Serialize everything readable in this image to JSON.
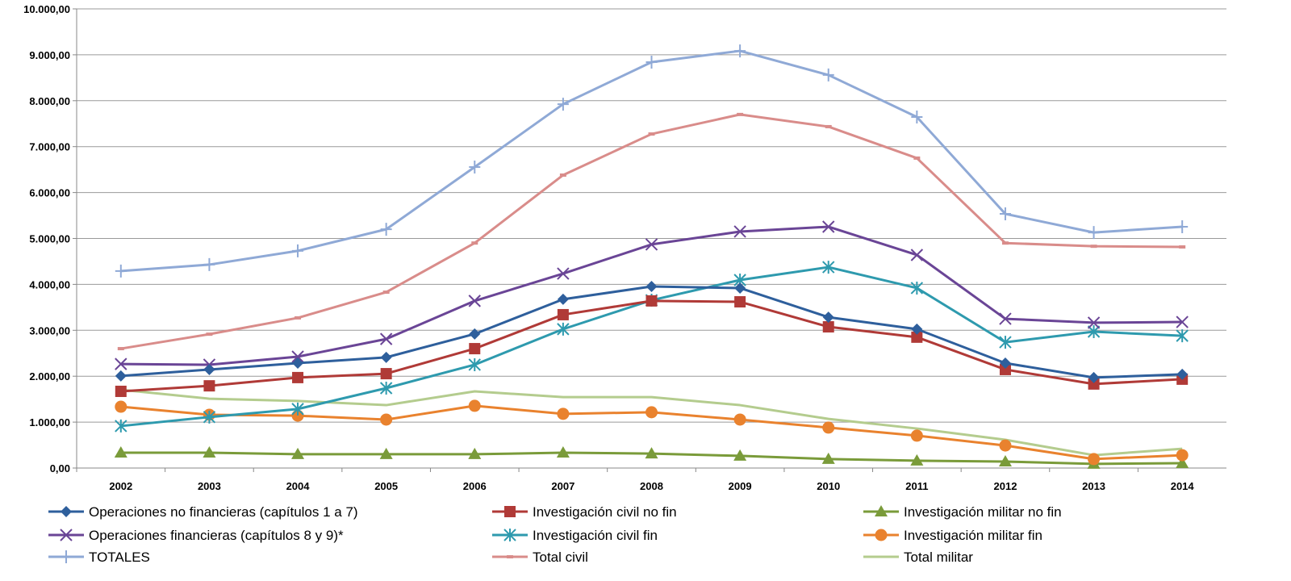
{
  "chart_data": {
    "type": "line",
    "title": "",
    "xlabel": "",
    "ylabel": "",
    "ylim": [
      0,
      10000
    ],
    "y_ticks": [
      "0,00",
      "1.000,00",
      "2.000,00",
      "3.000,00",
      "4.000,00",
      "5.000,00",
      "6.000,00",
      "7.000,00",
      "8.000,00",
      "9.000,00",
      "10.000,00"
    ],
    "grid": "horizontal",
    "legend_position": "bottom",
    "x": [
      "2002",
      "2003",
      "2004",
      "2005",
      "2006",
      "2007",
      "2008",
      "2009",
      "2010",
      "2011",
      "2012",
      "2013",
      "2014"
    ],
    "series": [
      {
        "name": "Operaciones no financieras (capítulos 1 a 7)",
        "color": "#2e5f9c",
        "marker": "diamond",
        "values": [
          2005,
          2145,
          2285,
          2410,
          2920,
          3675,
          3955,
          3920,
          3285,
          3025,
          2285,
          1970,
          2040
        ]
      },
      {
        "name": "Investigación civil no fin",
        "color": "#b03a37",
        "marker": "square",
        "values": [
          1670,
          1790,
          1970,
          2055,
          2600,
          3340,
          3640,
          3620,
          3075,
          2850,
          2145,
          1830,
          1935
        ]
      },
      {
        "name": "Investigación militar no fin",
        "color": "#7a9b3a",
        "marker": "triangle",
        "values": [
          335,
          335,
          300,
          300,
          300,
          335,
          315,
          265,
          195,
          160,
          140,
          90,
          105
        ]
      },
      {
        "name": "Operaciones financieras (capítulos 8 y 9)*",
        "color": "#6a4596",
        "marker": "x",
        "values": [
          2265,
          2250,
          2425,
          2810,
          3640,
          4235,
          4870,
          5150,
          5255,
          4640,
          3250,
          3165,
          3180
        ]
      },
      {
        "name": "Investigación civil fin",
        "color": "#2e9aae",
        "marker": "asterisk",
        "values": [
          915,
          1110,
          1285,
          1740,
          2250,
          3025,
          3655,
          4095,
          4375,
          3920,
          2740,
          2970,
          2880
        ]
      },
      {
        "name": "Investigación militar fin",
        "color": "#e9822e",
        "marker": "circle",
        "values": [
          1335,
          1160,
          1140,
          1055,
          1355,
          1180,
          1215,
          1055,
          880,
          705,
          490,
          195,
          280
        ]
      },
      {
        "name": "TOTALES",
        "color": "#8fa9d6",
        "marker": "plus",
        "values": [
          4290,
          4430,
          4730,
          5200,
          6555,
          7925,
          8840,
          9085,
          8560,
          7645,
          5535,
          5130,
          5255
        ]
      },
      {
        "name": "Total civil",
        "color": "#d98c8a",
        "marker": "dash",
        "values": [
          2600,
          2915,
          3270,
          3830,
          4900,
          6380,
          7275,
          7700,
          7435,
          6750,
          4900,
          4830,
          4815
        ]
      },
      {
        "name": "Total militar",
        "color": "#b4cc8e",
        "marker": "none",
        "values": [
          1705,
          1510,
          1460,
          1370,
          1670,
          1545,
          1545,
          1370,
          1070,
          860,
          615,
          280,
          420
        ]
      }
    ]
  }
}
